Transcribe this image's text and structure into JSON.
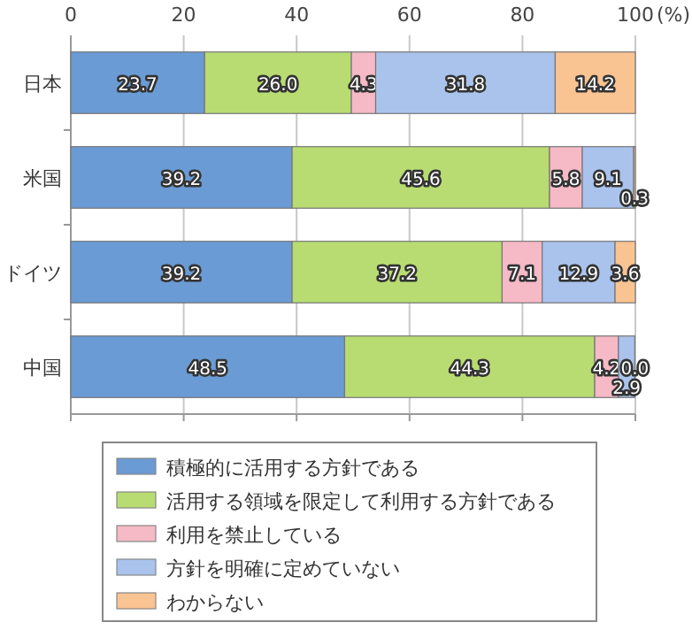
{
  "chart_data": {
    "type": "bar",
    "orientation": "horizontal",
    "stacked": true,
    "grid": "x",
    "legend": "bottom",
    "categories": [
      "日本",
      "米国",
      "ドイツ",
      "中国"
    ],
    "xlim": [
      0,
      100
    ],
    "xticks": [
      0,
      20,
      40,
      60,
      80,
      100
    ],
    "xlabel": "(%)",
    "series": [
      {
        "name": "積極的に活用する方針である",
        "color": "#6a9bd4",
        "values": [
          23.7,
          39.2,
          39.2,
          48.5
        ],
        "value_labels": [
          "23.7",
          "39.2",
          "39.2",
          "48.5"
        ]
      },
      {
        "name": "活用する領域を限定して利用する方針である",
        "color": "#b8dc72",
        "values": [
          26.0,
          45.6,
          37.2,
          44.3
        ],
        "value_labels": [
          "26.0",
          "45.6",
          "37.2",
          "44.3"
        ]
      },
      {
        "name": "利用を禁止している",
        "color": "#f6b9c6",
        "values": [
          4.3,
          5.8,
          7.1,
          4.2
        ],
        "value_labels": [
          "4.3",
          "5.8",
          "7.1",
          "4.2"
        ]
      },
      {
        "name": "方針を明確に定めていない",
        "color": "#a9c3ec",
        "values": [
          31.8,
          9.1,
          12.9,
          2.9
        ],
        "value_labels": [
          "31.8",
          "9.1",
          "12.9",
          "2.9"
        ]
      },
      {
        "name": "わからない",
        "color": "#f9c392",
        "values": [
          14.2,
          0.3,
          3.6,
          0.0
        ],
        "value_labels": [
          "14.2",
          "0.3",
          "3.6",
          "0.0"
        ]
      }
    ]
  }
}
